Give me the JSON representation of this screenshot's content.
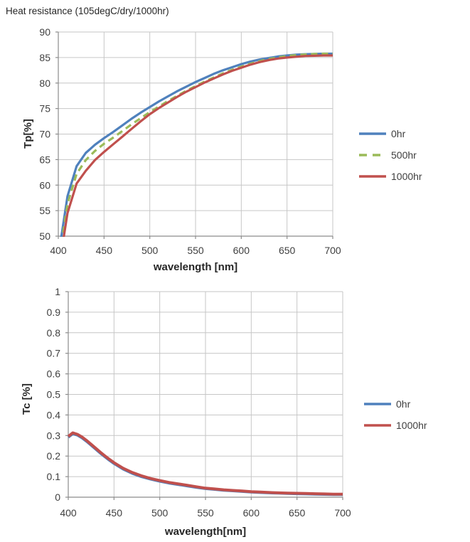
{
  "style": {
    "background": "#ffffff",
    "gridline_color": "#c6c6c6",
    "axis_color": "#8c8c8c",
    "tick_text_color": "#3f3f3f",
    "title_text_color": "#262626",
    "series_blue": "#4f81bd",
    "series_green": "#9bbb59",
    "series_red": "#c0504d"
  },
  "chart_data": [
    {
      "type": "line",
      "title": "Heat resistance (105degC/dry/1000hr)",
      "xlabel": "wavelength [nm]",
      "ylabel": "Tp[%]",
      "xlim": [
        400,
        700
      ],
      "ylim": [
        50,
        90
      ],
      "xticks": [
        400,
        450,
        500,
        550,
        600,
        650,
        700
      ],
      "yticks": [
        50,
        55,
        60,
        65,
        70,
        75,
        80,
        85,
        90
      ],
      "grid": true,
      "legend_position": "right",
      "x": [
        400,
        410,
        420,
        430,
        440,
        450,
        460,
        470,
        480,
        490,
        500,
        510,
        520,
        530,
        540,
        550,
        560,
        570,
        580,
        590,
        600,
        610,
        620,
        630,
        640,
        650,
        660,
        670,
        680,
        690,
        700
      ],
      "series": [
        {
          "name": "0hr",
          "color": "#4f81bd",
          "dashed": false,
          "values": [
            46.0,
            57.8,
            63.7,
            66.3,
            67.9,
            69.2,
            70.4,
            71.7,
            73.0,
            74.2,
            75.3,
            76.4,
            77.4,
            78.4,
            79.3,
            80.2,
            81.0,
            81.8,
            82.5,
            83.1,
            83.7,
            84.2,
            84.6,
            84.9,
            85.2,
            85.4,
            85.55,
            85.65,
            85.7,
            85.75,
            85.75
          ]
        },
        {
          "name": "500hr",
          "color": "#9bbb59",
          "dashed": true,
          "values": [
            44.5,
            56.3,
            62.2,
            64.9,
            66.7,
            68.1,
            69.3,
            70.6,
            71.9,
            73.1,
            74.3,
            75.4,
            76.5,
            77.5,
            78.5,
            79.4,
            80.3,
            81.1,
            81.9,
            82.6,
            83.2,
            83.8,
            84.3,
            84.7,
            85.0,
            85.3,
            85.45,
            85.6,
            85.7,
            85.75,
            85.75
          ]
        },
        {
          "name": "1000hr",
          "color": "#c0504d",
          "dashed": false,
          "values": [
            43.0,
            54.5,
            60.3,
            62.8,
            64.9,
            66.5,
            68.0,
            69.5,
            71.0,
            72.5,
            73.9,
            75.1,
            76.2,
            77.3,
            78.3,
            79.2,
            80.1,
            80.9,
            81.7,
            82.4,
            83.0,
            83.6,
            84.1,
            84.5,
            84.8,
            85.0,
            85.15,
            85.3,
            85.35,
            85.4,
            85.4
          ]
        }
      ]
    },
    {
      "type": "line",
      "title": "",
      "xlabel": "wavelength[nm]",
      "ylabel": "Tc [%]",
      "xlim": [
        400,
        700
      ],
      "ylim": [
        0,
        1
      ],
      "xticks": [
        400,
        450,
        500,
        550,
        600,
        650,
        700
      ],
      "yticks": [
        0,
        0.1,
        0.2,
        0.3,
        0.4,
        0.5,
        0.6,
        0.7,
        0.8,
        0.9,
        1
      ],
      "grid": true,
      "legend_position": "right",
      "x": [
        400,
        405,
        410,
        415,
        420,
        425,
        430,
        435,
        440,
        445,
        450,
        460,
        470,
        480,
        490,
        500,
        510,
        520,
        530,
        540,
        550,
        560,
        570,
        580,
        590,
        600,
        610,
        620,
        630,
        640,
        650,
        660,
        670,
        680,
        690,
        700
      ],
      "series": [
        {
          "name": "0hr",
          "color": "#4f81bd",
          "dashed": false,
          "values": [
            0.292,
            0.309,
            0.302,
            0.289,
            0.272,
            0.253,
            0.234,
            0.215,
            0.197,
            0.18,
            0.164,
            0.137,
            0.116,
            0.1,
            0.088,
            0.078,
            0.069,
            0.062,
            0.055,
            0.048,
            0.042,
            0.038,
            0.034,
            0.031,
            0.028,
            0.025,
            0.023,
            0.021,
            0.02,
            0.018,
            0.017,
            0.016,
            0.015,
            0.014,
            0.013,
            0.013
          ]
        },
        {
          "name": "1000hr",
          "color": "#c0504d",
          "dashed": false,
          "values": [
            0.296,
            0.313,
            0.306,
            0.293,
            0.276,
            0.257,
            0.238,
            0.219,
            0.201,
            0.184,
            0.168,
            0.141,
            0.12,
            0.104,
            0.091,
            0.081,
            0.072,
            0.065,
            0.058,
            0.051,
            0.044,
            0.04,
            0.036,
            0.033,
            0.03,
            0.027,
            0.025,
            0.023,
            0.021,
            0.02,
            0.019,
            0.018,
            0.017,
            0.016,
            0.015,
            0.015
          ]
        }
      ]
    }
  ]
}
